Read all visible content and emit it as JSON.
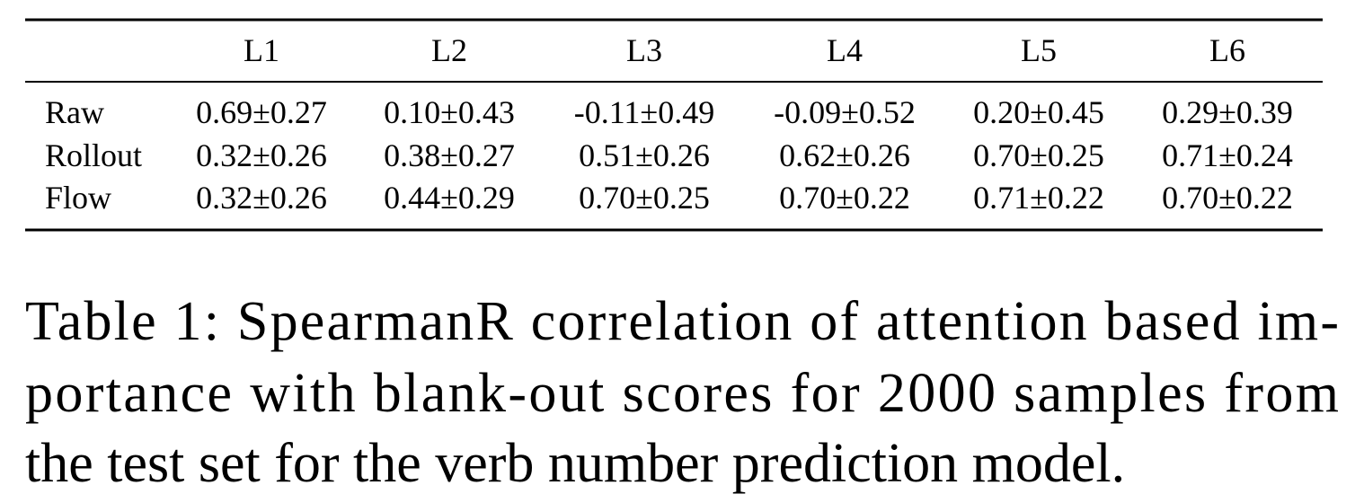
{
  "table": {
    "columns": [
      "L1",
      "L2",
      "L3",
      "L4",
      "L5",
      "L6"
    ],
    "rows": [
      {
        "label": "Raw",
        "cells": [
          "0.69±0.27",
          "0.10±0.43",
          "-0.11±0.49",
          "-0.09±0.52",
          "0.20±0.45",
          "0.29±0.39"
        ]
      },
      {
        "label": "Rollout",
        "cells": [
          "0.32±0.26",
          "0.38±0.27",
          "0.51±0.26",
          "0.62±0.26",
          "0.70±0.25",
          "0.71±0.24"
        ]
      },
      {
        "label": "Flow",
        "cells": [
          "0.32±0.26",
          "0.44±0.29",
          "0.70±0.25",
          "0.70±0.22",
          "0.71±0.22",
          "0.70±0.22"
        ]
      }
    ]
  },
  "caption": {
    "lines": [
      "Table 1: SpearmanR correlation of attention based im-",
      "portance with blank-out scores for 2000 samples from",
      "the test set for the verb number prediction model."
    ]
  }
}
